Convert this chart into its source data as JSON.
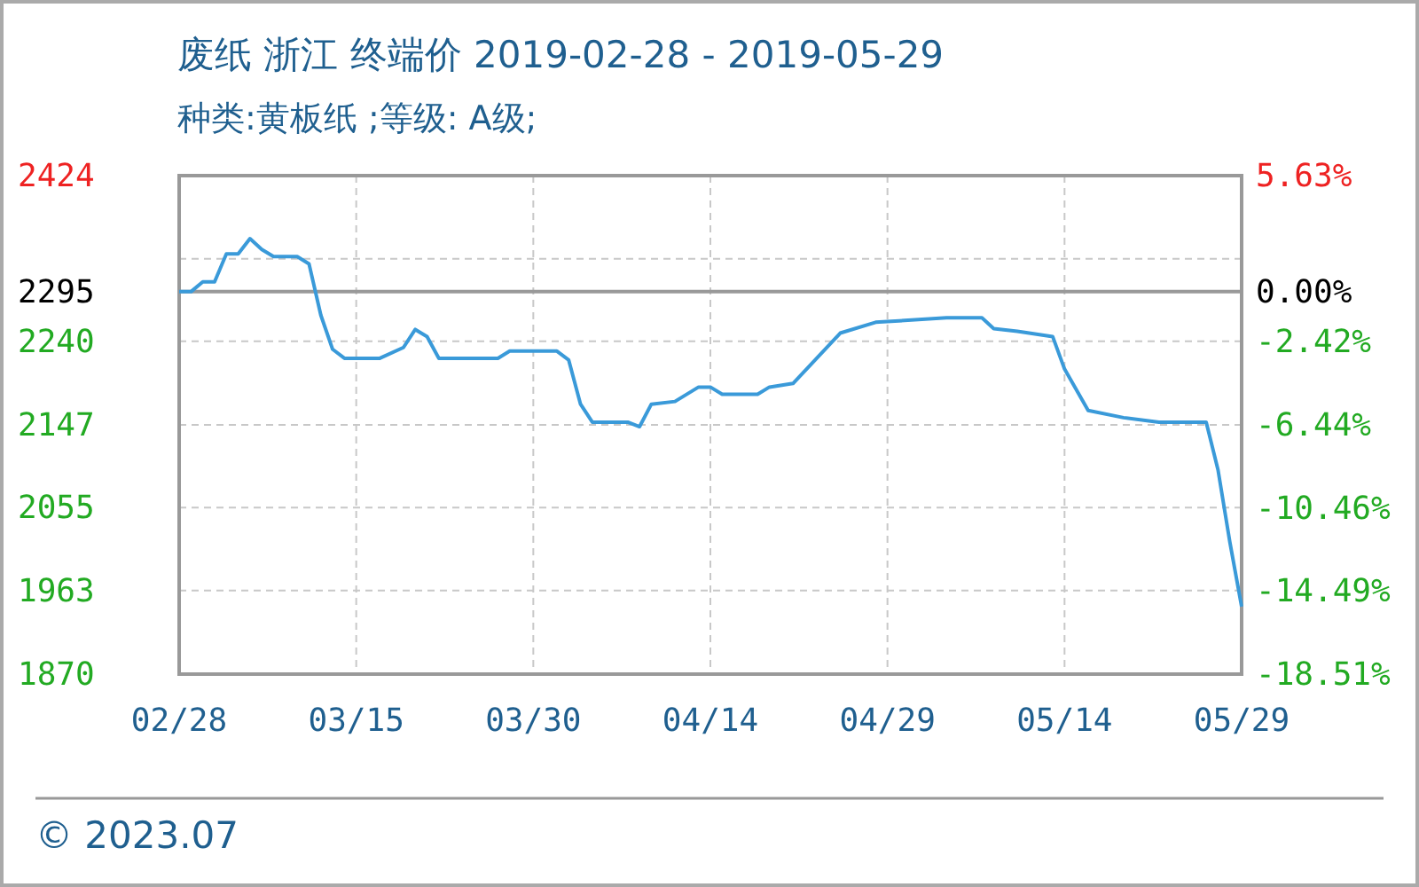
{
  "chart_data": {
    "type": "line",
    "title": "废纸 浙江 终端价 2019-02-28 - 2019-05-29",
    "subtitle": "种类:黄板纸 ;等级: A级;",
    "x": [
      "2019-02-28",
      "2019-03-01",
      "2019-03-02",
      "2019-03-03",
      "2019-03-04",
      "2019-03-05",
      "2019-03-06",
      "2019-03-07",
      "2019-03-08",
      "2019-03-10",
      "2019-03-11",
      "2019-03-12",
      "2019-03-13",
      "2019-03-14",
      "2019-03-17",
      "2019-03-19",
      "2019-03-20",
      "2019-03-21",
      "2019-03-22",
      "2019-03-27",
      "2019-03-28",
      "2019-04-01",
      "2019-04-02",
      "2019-04-03",
      "2019-04-04",
      "2019-04-07",
      "2019-04-08",
      "2019-04-09",
      "2019-04-11",
      "2019-04-13",
      "2019-04-14",
      "2019-04-15",
      "2019-04-18",
      "2019-04-19",
      "2019-04-21",
      "2019-04-25",
      "2019-04-28",
      "2019-05-04",
      "2019-05-07",
      "2019-05-08",
      "2019-05-10",
      "2019-05-13",
      "2019-05-14",
      "2019-05-16",
      "2019-05-19",
      "2019-05-22",
      "2019-05-26",
      "2019-05-27",
      "2019-05-28",
      "2019-05-29"
    ],
    "series": [
      {
        "color": "#3a9ad9",
        "values": [
          2295,
          2295,
          2306,
          2306,
          2337,
          2337,
          2354,
          2342,
          2334,
          2334,
          2326,
          2269,
          2231,
          2221,
          2221,
          2233,
          2253,
          2245,
          2221,
          2221,
          2229,
          2229,
          2219,
          2170,
          2150,
          2150,
          2145,
          2170,
          2173,
          2189,
          2189,
          2181,
          2181,
          2189,
          2193,
          2249,
          2261,
          2266,
          2266,
          2254,
          2251,
          2245,
          2209,
          2163,
          2155,
          2150,
          2150,
          2097,
          2017,
          1945
        ]
      }
    ],
    "xlim": [
      "2019-02-28",
      "2019-05-29"
    ],
    "xticks": [
      {
        "value": "2019-02-28",
        "label": "02/28"
      },
      {
        "value": "2019-03-15",
        "label": "03/15"
      },
      {
        "value": "2019-03-30",
        "label": "03/30"
      },
      {
        "value": "2019-04-14",
        "label": "04/14"
      },
      {
        "value": "2019-04-29",
        "label": "04/29"
      },
      {
        "value": "2019-05-14",
        "label": "05/14"
      },
      {
        "value": "2019-05-29",
        "label": "05/29"
      }
    ],
    "ylim": [
      1870,
      2424
    ],
    "yticks": [
      2424,
      {
        "value": 2331.67,
        "label": null
      },
      2295,
      2240,
      2147,
      2055,
      1963,
      1870
    ],
    "y2lim": [
      -18.51,
      5.63
    ],
    "y2ticks": [
      {
        "value": 5.63,
        "label": "5.63%"
      },
      {
        "value": 0,
        "label": "0.00%"
      },
      {
        "value": -2.42,
        "label": "-2.42%"
      },
      {
        "value": -6.44,
        "label": "-6.44%"
      },
      {
        "value": -10.46,
        "label": "-10.46%"
      },
      {
        "value": -14.49,
        "label": "-14.49%"
      },
      {
        "value": -18.51,
        "label": "-18.51%"
      }
    ],
    "ref_lines": [
      {
        "axis": "y",
        "value": 2295,
        "color": "#999999"
      }
    ],
    "grid": true,
    "annotations": [
      "© 2023.07"
    ]
  }
}
